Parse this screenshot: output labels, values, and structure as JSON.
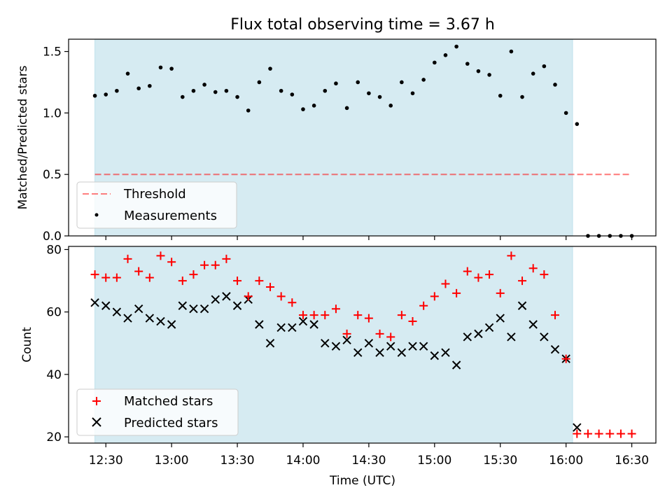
{
  "title": "Flux total observing time = 3.67 h",
  "colors": {
    "shade": "#add8e6",
    "threshold": "#ff0000",
    "matched": "#ff0000",
    "predicted": "#000000",
    "measurement": "#000000"
  },
  "chart_data": [
    {
      "type": "scatter",
      "panel": "top",
      "xlabel": "",
      "ylabel": "Matched/Predicted stars",
      "xlim": [
        "12:13",
        "16:41"
      ],
      "ylim": [
        0,
        1.6
      ],
      "yticks": [
        0.0,
        0.5,
        1.0,
        1.5
      ],
      "ytick_labels": [
        "0.0",
        "0.5",
        "1.0",
        "1.5"
      ],
      "shaded_span": [
        "12:25",
        "16:03"
      ],
      "legend": {
        "position": "lower-left",
        "entries": [
          {
            "label": "Threshold",
            "style": "dashed-line"
          },
          {
            "label": "Measurements",
            "style": "dot"
          }
        ]
      },
      "series": [
        {
          "name": "Threshold",
          "kind": "line",
          "x": [
            "12:25",
            "16:29"
          ],
          "y": [
            0.5,
            0.5
          ]
        },
        {
          "name": "Measurements",
          "kind": "scatter",
          "x": [
            "12:25",
            "12:30",
            "12:35",
            "12:40",
            "12:45",
            "12:50",
            "12:55",
            "13:00",
            "13:05",
            "13:10",
            "13:15",
            "13:20",
            "13:25",
            "13:30",
            "13:35",
            "13:40",
            "13:45",
            "13:50",
            "13:55",
            "14:00",
            "14:05",
            "14:10",
            "14:15",
            "14:20",
            "14:25",
            "14:30",
            "14:35",
            "14:40",
            "14:45",
            "14:50",
            "14:55",
            "15:00",
            "15:05",
            "15:10",
            "15:15",
            "15:20",
            "15:25",
            "15:30",
            "15:35",
            "15:40",
            "15:45",
            "15:50",
            "15:55",
            "16:00",
            "16:05",
            "16:10",
            "16:15",
            "16:20",
            "16:25",
            "16:30"
          ],
          "y": [
            1.14,
            1.15,
            1.18,
            1.32,
            1.2,
            1.22,
            1.37,
            1.36,
            1.13,
            1.18,
            1.23,
            1.17,
            1.18,
            1.13,
            1.02,
            1.25,
            1.36,
            1.18,
            1.15,
            1.03,
            1.06,
            1.18,
            1.24,
            1.04,
            1.25,
            1.16,
            1.13,
            1.06,
            1.25,
            1.16,
            1.27,
            1.41,
            1.47,
            1.54,
            1.4,
            1.34,
            1.31,
            1.14,
            1.5,
            1.13,
            1.32,
            1.38,
            1.23,
            1.0,
            0.91,
            0,
            0,
            0,
            0,
            0
          ]
        }
      ]
    },
    {
      "type": "scatter",
      "panel": "bottom",
      "xlabel": "Time (UTC)",
      "ylabel": "Count",
      "xlim": [
        "12:13",
        "16:41"
      ],
      "ylim": [
        18,
        81
      ],
      "yticks": [
        20,
        40,
        60,
        80
      ],
      "ytick_labels": [
        "20",
        "40",
        "60",
        "80"
      ],
      "xticks": [
        "12:30",
        "13:00",
        "13:30",
        "14:00",
        "14:30",
        "15:00",
        "15:30",
        "16:00",
        "16:30"
      ],
      "shaded_span": [
        "12:25",
        "16:03"
      ],
      "legend": {
        "position": "lower-left",
        "entries": [
          {
            "label": "Matched stars",
            "style": "plus"
          },
          {
            "label": "Predicted stars",
            "style": "x"
          }
        ]
      },
      "series": [
        {
          "name": "Matched stars",
          "marker": "plus",
          "x": [
            "12:25",
            "12:30",
            "12:35",
            "12:40",
            "12:45",
            "12:50",
            "12:55",
            "13:00",
            "13:05",
            "13:10",
            "13:15",
            "13:20",
            "13:25",
            "13:30",
            "13:35",
            "13:40",
            "13:45",
            "13:50",
            "13:55",
            "14:00",
            "14:05",
            "14:10",
            "14:15",
            "14:20",
            "14:25",
            "14:30",
            "14:35",
            "14:40",
            "14:45",
            "14:50",
            "14:55",
            "15:00",
            "15:05",
            "15:10",
            "15:15",
            "15:20",
            "15:25",
            "15:30",
            "15:35",
            "15:40",
            "15:45",
            "15:50",
            "15:55",
            "16:00",
            "16:05",
            "16:10",
            "16:15",
            "16:20",
            "16:25",
            "16:30"
          ],
          "y": [
            72,
            71,
            71,
            77,
            73,
            71,
            78,
            76,
            70,
            72,
            75,
            75,
            77,
            70,
            65,
            70,
            68,
            65,
            63,
            59,
            59,
            59,
            61,
            53,
            59,
            58,
            53,
            52,
            59,
            57,
            62,
            65,
            69,
            66,
            73,
            71,
            72,
            66,
            78,
            70,
            74,
            72,
            59,
            45,
            21,
            21,
            21,
            21,
            21,
            21
          ]
        },
        {
          "name": "Predicted stars",
          "marker": "x",
          "x": [
            "12:25",
            "12:30",
            "12:35",
            "12:40",
            "12:45",
            "12:50",
            "12:55",
            "13:00",
            "13:05",
            "13:10",
            "13:15",
            "13:20",
            "13:25",
            "13:30",
            "13:35",
            "13:40",
            "13:45",
            "13:50",
            "13:55",
            "14:00",
            "14:05",
            "14:10",
            "14:15",
            "14:20",
            "14:25",
            "14:30",
            "14:35",
            "14:40",
            "14:45",
            "14:50",
            "14:55",
            "15:00",
            "15:05",
            "15:10",
            "15:15",
            "15:20",
            "15:25",
            "15:30",
            "15:35",
            "15:40",
            "15:45",
            "15:50",
            "15:55",
            "16:00",
            "16:05"
          ],
          "y": [
            63,
            62,
            60,
            58,
            61,
            58,
            57,
            56,
            62,
            61,
            61,
            64,
            65,
            62,
            64,
            56,
            50,
            55,
            55,
            57,
            56,
            50,
            49,
            51,
            47,
            50,
            47,
            49,
            47,
            49,
            49,
            46,
            47,
            43,
            52,
            53,
            55,
            58,
            52,
            62,
            56,
            52,
            48,
            45,
            23
          ]
        }
      ]
    }
  ]
}
